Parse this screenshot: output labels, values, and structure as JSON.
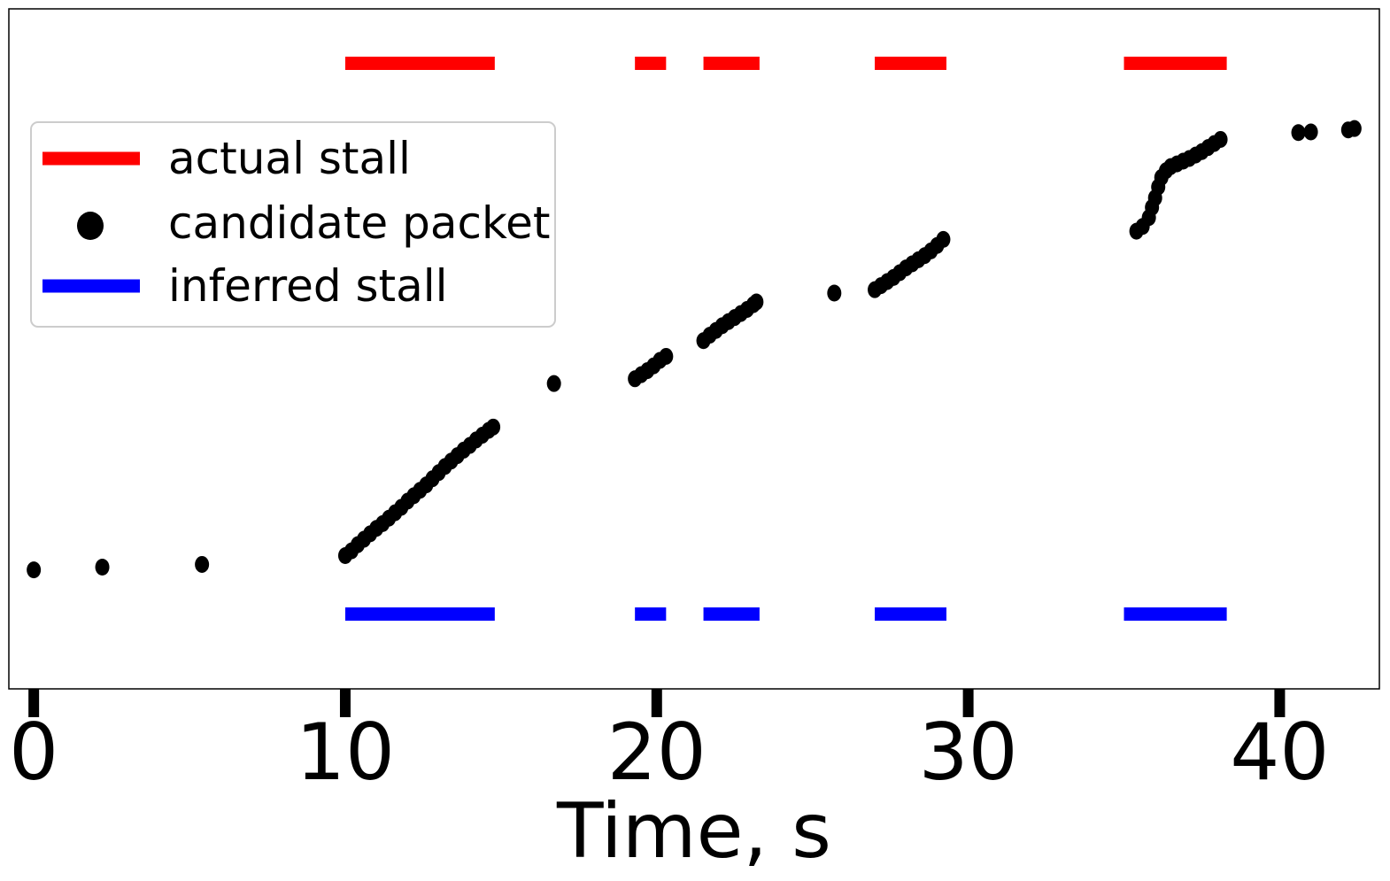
{
  "chart_data": {
    "type": "scatter",
    "title": "",
    "xlabel": "Time, s",
    "ylabel": "",
    "xlim": [
      -0.8,
      43.2
    ],
    "ylim": [
      0,
      1
    ],
    "xticks": [
      0,
      10,
      20,
      30,
      40
    ],
    "grid": false,
    "legend_position": "upper-left",
    "legend": [
      {
        "name": "actual stall",
        "kind": "line",
        "color": "#ff0000"
      },
      {
        "name": "candidate packet",
        "kind": "marker",
        "color": "#000000"
      },
      {
        "name": "inferred stall",
        "kind": "line",
        "color": "#0000ff"
      }
    ],
    "actual_stalls": [
      [
        10.0,
        14.8
      ],
      [
        19.3,
        20.3
      ],
      [
        21.5,
        23.3
      ],
      [
        27.0,
        29.3
      ],
      [
        35.0,
        38.3
      ]
    ],
    "inferred_stalls": [
      [
        10.0,
        14.8
      ],
      [
        19.3,
        20.3
      ],
      [
        21.5,
        23.3
      ],
      [
        27.0,
        29.3
      ],
      [
        35.0,
        38.3
      ]
    ],
    "actual_level": 0.92,
    "inferred_level": 0.11,
    "candidate_packets": [
      [
        0.0,
        0.175
      ],
      [
        2.2,
        0.179
      ],
      [
        5.4,
        0.183
      ],
      [
        10.0,
        0.196
      ],
      [
        10.2,
        0.203
      ],
      [
        10.4,
        0.212
      ],
      [
        10.6,
        0.22
      ],
      [
        10.8,
        0.228
      ],
      [
        11.0,
        0.236
      ],
      [
        11.2,
        0.243
      ],
      [
        11.4,
        0.251
      ],
      [
        11.6,
        0.259
      ],
      [
        11.8,
        0.267
      ],
      [
        12.0,
        0.276
      ],
      [
        12.2,
        0.284
      ],
      [
        12.4,
        0.292
      ],
      [
        12.6,
        0.3
      ],
      [
        12.8,
        0.309
      ],
      [
        13.0,
        0.318
      ],
      [
        13.2,
        0.327
      ],
      [
        13.4,
        0.335
      ],
      [
        13.6,
        0.343
      ],
      [
        13.8,
        0.351
      ],
      [
        14.0,
        0.358
      ],
      [
        14.2,
        0.366
      ],
      [
        14.4,
        0.373
      ],
      [
        14.6,
        0.38
      ],
      [
        14.75,
        0.385
      ],
      [
        16.7,
        0.449
      ],
      [
        19.3,
        0.456
      ],
      [
        19.5,
        0.462
      ],
      [
        19.7,
        0.468
      ],
      [
        19.9,
        0.475
      ],
      [
        20.1,
        0.483
      ],
      [
        20.3,
        0.489
      ],
      [
        21.5,
        0.512
      ],
      [
        21.7,
        0.52
      ],
      [
        21.9,
        0.527
      ],
      [
        22.1,
        0.534
      ],
      [
        22.3,
        0.54
      ],
      [
        22.5,
        0.546
      ],
      [
        22.7,
        0.552
      ],
      [
        22.9,
        0.558
      ],
      [
        23.1,
        0.565
      ],
      [
        23.2,
        0.569
      ],
      [
        25.7,
        0.582
      ],
      [
        27.0,
        0.587
      ],
      [
        27.2,
        0.593
      ],
      [
        27.4,
        0.599
      ],
      [
        27.6,
        0.605
      ],
      [
        27.8,
        0.612
      ],
      [
        28.0,
        0.619
      ],
      [
        28.2,
        0.625
      ],
      [
        28.4,
        0.631
      ],
      [
        28.6,
        0.637
      ],
      [
        28.8,
        0.644
      ],
      [
        29.0,
        0.652
      ],
      [
        29.2,
        0.661
      ],
      [
        35.4,
        0.673
      ],
      [
        35.6,
        0.68
      ],
      [
        35.8,
        0.693
      ],
      [
        35.9,
        0.708
      ],
      [
        36.0,
        0.722
      ],
      [
        36.1,
        0.738
      ],
      [
        36.2,
        0.752
      ],
      [
        36.35,
        0.762
      ],
      [
        36.5,
        0.768
      ],
      [
        36.7,
        0.772
      ],
      [
        36.9,
        0.776
      ],
      [
        37.1,
        0.78
      ],
      [
        37.3,
        0.785
      ],
      [
        37.5,
        0.79
      ],
      [
        37.7,
        0.796
      ],
      [
        37.9,
        0.802
      ],
      [
        38.1,
        0.808
      ],
      [
        40.6,
        0.818
      ],
      [
        41.0,
        0.819
      ],
      [
        42.2,
        0.822
      ],
      [
        42.4,
        0.824
      ]
    ]
  }
}
